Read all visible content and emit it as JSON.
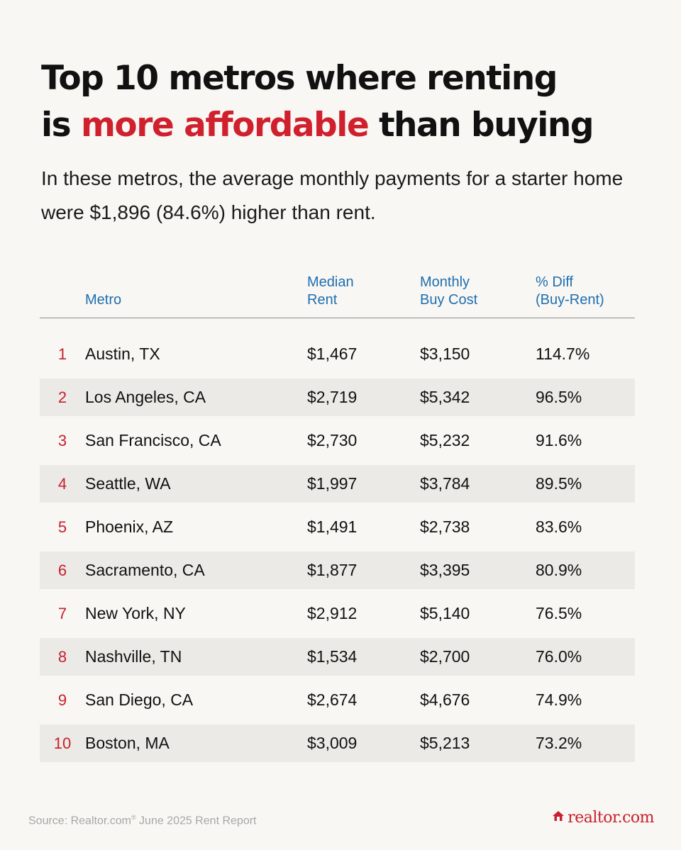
{
  "headline": {
    "line1": "Top 10 metros where renting",
    "line2_prefix": "is ",
    "line2_accent": "more affordable",
    "line2_suffix": " than buying"
  },
  "subtitle": "In these metros, the average monthly payments for a starter home were $1,896 (84.6%) higher than rent.",
  "colors": {
    "accent": "#d0202e",
    "header_blue": "#1f6fb0",
    "row_shade": "#ebeae6",
    "background": "#f8f7f3"
  },
  "chart_data": {
    "type": "table",
    "columns": [
      "",
      "Metro",
      "Median Rent",
      "Monthly Buy Cost",
      "% Diff (Buy-Rent)"
    ],
    "header": {
      "metro": "Metro",
      "rent_l1": "Median",
      "rent_l2": "Rent",
      "buy_l1": "Monthly",
      "buy_l2": "Buy Cost",
      "diff_l1": "% Diff",
      "diff_l2": "(Buy-Rent)"
    },
    "rows": [
      {
        "rank": "1",
        "metro": "Austin, TX",
        "rent": "$1,467",
        "buy": "$3,150",
        "diff": "114.7%"
      },
      {
        "rank": "2",
        "metro": "Los Angeles, CA",
        "rent": "$2,719",
        "buy": "$5,342",
        "diff": "96.5%"
      },
      {
        "rank": "3",
        "metro": "San Francisco, CA",
        "rent": "$2,730",
        "buy": "$5,232",
        "diff": "91.6%"
      },
      {
        "rank": "4",
        "metro": "Seattle, WA",
        "rent": "$1,997",
        "buy": "$3,784",
        "diff": "89.5%"
      },
      {
        "rank": "5",
        "metro": "Phoenix, AZ",
        "rent": "$1,491",
        "buy": "$2,738",
        "diff": "83.6%"
      },
      {
        "rank": "6",
        "metro": "Sacramento, CA",
        "rent": "$1,877",
        "buy": "$3,395",
        "diff": "80.9%"
      },
      {
        "rank": "7",
        "metro": "New York, NY",
        "rent": "$2,912",
        "buy": "$5,140",
        "diff": "76.5%"
      },
      {
        "rank": "8",
        "metro": "Nashville, TN",
        "rent": "$1,534",
        "buy": "$2,700",
        "diff": "76.0%"
      },
      {
        "rank": "9",
        "metro": "San Diego, CA",
        "rent": "$2,674",
        "buy": "$4,676",
        "diff": "74.9%"
      },
      {
        "rank": "10",
        "metro": "Boston, MA",
        "rent": "$3,009",
        "buy": "$5,213",
        "diff": "73.2%"
      }
    ]
  },
  "footer": {
    "source_prefix": "Source: Realtor.com",
    "source_reg": "®",
    "source_suffix": " June 2025 Rent Report",
    "brand_icon": "house-icon",
    "brand_text": "realtor.com"
  }
}
